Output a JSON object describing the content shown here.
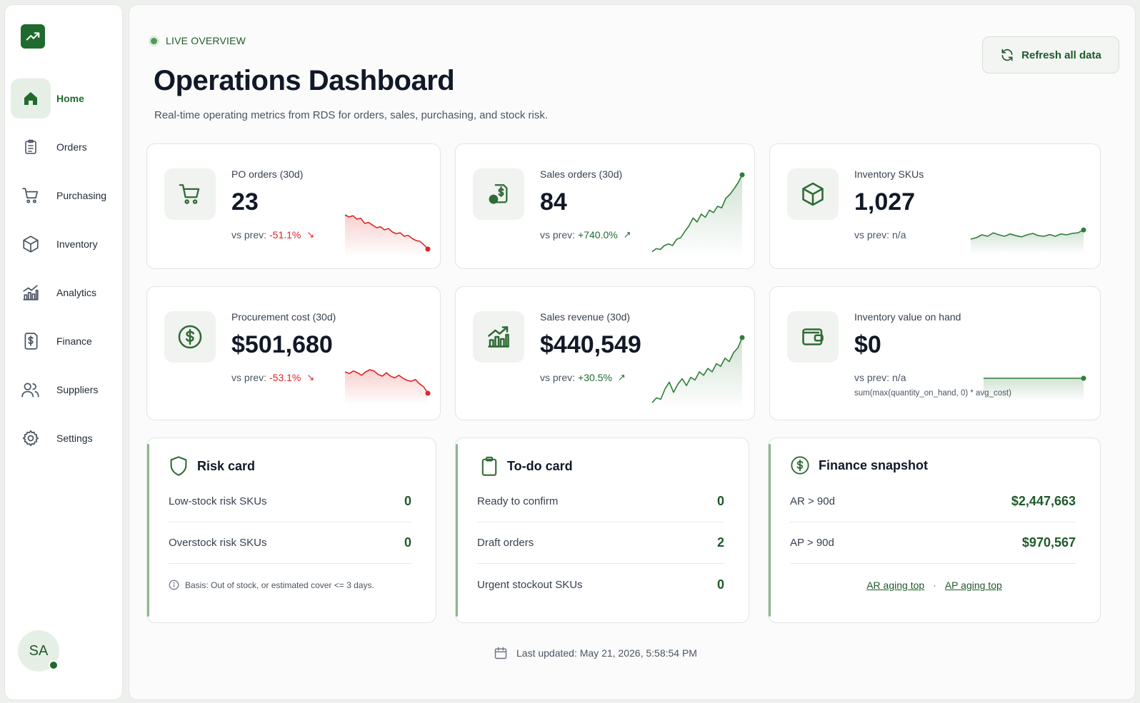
{
  "sidebar": {
    "logo_icon": "trend-up-icon",
    "items": [
      {
        "label": "Home",
        "icon": "home-icon",
        "active": true
      },
      {
        "label": "Orders",
        "icon": "clipboard-icon"
      },
      {
        "label": "Purchasing",
        "icon": "cart-icon"
      },
      {
        "label": "Inventory",
        "icon": "box-icon"
      },
      {
        "label": "Analytics",
        "icon": "bar-chart-icon"
      },
      {
        "label": "Finance",
        "icon": "dollar-doc-icon"
      },
      {
        "label": "Suppliers",
        "icon": "users-icon"
      },
      {
        "label": "Settings",
        "icon": "gear-icon"
      }
    ],
    "avatar": "SA"
  },
  "header": {
    "live_label": "LIVE OVERVIEW",
    "title": "Operations Dashboard",
    "subtitle": "Real-time operating metrics from RDS for orders, sales, purchasing, and stock risk.",
    "refresh_label": "Refresh all data"
  },
  "kpis": [
    {
      "label": "PO orders (30d)",
      "value": "23",
      "delta_prefix": "vs prev:",
      "delta": "-51.1%",
      "trend": "down",
      "icon": "cart-icon",
      "spark": [
        0.9,
        0.85,
        0.88,
        0.8,
        0.82,
        0.7,
        0.72,
        0.66,
        0.6,
        0.62,
        0.55,
        0.58,
        0.5,
        0.46,
        0.48,
        0.4,
        0.42,
        0.35,
        0.3,
        0.28,
        0.2,
        0.1
      ]
    },
    {
      "label": "Sales orders (30d)",
      "value": "84",
      "delta_prefix": "vs prev:",
      "delta": "+740.0%",
      "trend": "up",
      "icon": "dollar-doc-icon",
      "spark": [
        0.02,
        0.06,
        0.05,
        0.1,
        0.12,
        0.1,
        0.18,
        0.2,
        0.28,
        0.35,
        0.45,
        0.4,
        0.5,
        0.46,
        0.55,
        0.52,
        0.6,
        0.58,
        0.7,
        0.75,
        0.82,
        0.9,
        1.0
      ]
    },
    {
      "label": "Inventory SKUs",
      "value": "1,027",
      "delta_prefix": "vs prev:",
      "delta": "n/a",
      "trend": "flat",
      "icon": "box-icon",
      "spark": [
        0.4,
        0.45,
        0.55,
        0.5,
        0.62,
        0.55,
        0.5,
        0.58,
        0.52,
        0.48,
        0.55,
        0.6,
        0.52,
        0.5,
        0.56,
        0.5,
        0.58,
        0.55,
        0.6,
        0.62,
        0.72
      ]
    },
    {
      "label": "Procurement cost (30d)",
      "value": "$501,680",
      "delta_prefix": "vs prev:",
      "delta": "-53.1%",
      "trend": "down",
      "icon": "dollar-circle-icon",
      "spark": [
        0.7,
        0.66,
        0.72,
        0.68,
        0.62,
        0.7,
        0.75,
        0.72,
        0.64,
        0.6,
        0.68,
        0.6,
        0.56,
        0.62,
        0.55,
        0.5,
        0.48,
        0.52,
        0.42,
        0.35,
        0.2
      ]
    },
    {
      "label": "Sales revenue (30d)",
      "value": "$440,549",
      "delta_prefix": "vs prev:",
      "delta": "+30.5%",
      "trend": "up",
      "icon": "bar-chart-icon",
      "spark": [
        0.05,
        0.12,
        0.1,
        0.25,
        0.35,
        0.2,
        0.32,
        0.4,
        0.3,
        0.42,
        0.38,
        0.5,
        0.45,
        0.55,
        0.5,
        0.62,
        0.58,
        0.7,
        0.65,
        0.78,
        0.85,
        1.0
      ]
    },
    {
      "label": "Inventory value on hand",
      "value": "$0",
      "delta_prefix": "vs prev:",
      "delta": "n/a",
      "trend": "flat",
      "icon": "wallet-icon",
      "note": "sum(max(quantity_on_hand, 0) * avg_cost)",
      "spark": [
        0.5,
        0.5,
        0.5,
        0.5,
        0.5,
        0.5,
        0.5,
        0.5,
        0.5,
        0.5,
        0.5,
        0.5,
        0.5,
        0.5
      ]
    }
  ],
  "risk": {
    "title": "Risk card",
    "rows": [
      {
        "label": "Low-stock risk SKUs",
        "value": "0"
      },
      {
        "label": "Overstock risk SKUs",
        "value": "0"
      }
    ],
    "basis": "Basis: Out of stock, or estimated cover <= 3 days."
  },
  "todo": {
    "title": "To-do card",
    "rows": [
      {
        "label": "Ready to confirm",
        "value": "0"
      },
      {
        "label": "Draft orders",
        "value": "2"
      },
      {
        "label": "Urgent stockout SKUs",
        "value": "0"
      }
    ]
  },
  "finance": {
    "title": "Finance snapshot",
    "rows": [
      {
        "label": "AR > 90d",
        "value": "$2,447,663"
      },
      {
        "label": "AP > 90d",
        "value": "$970,567"
      }
    ],
    "link_ar": "AR aging top",
    "link_ap": "AP aging top",
    "sep": "·"
  },
  "footer": {
    "last_updated": "Last updated: May 21, 2026, 5:58:54 PM"
  },
  "colors": {
    "accent": "#1f6b2f",
    "down": "#dc2626",
    "up": "#2f7d3a"
  }
}
